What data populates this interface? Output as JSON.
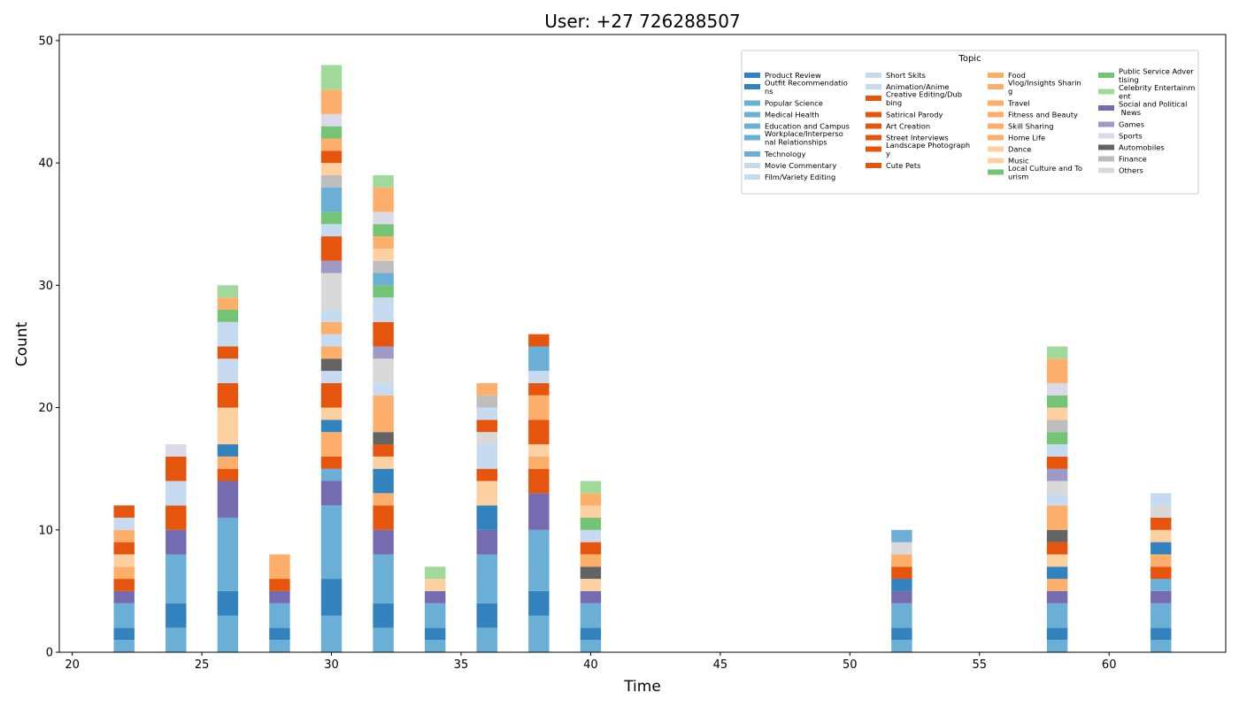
{
  "chart_data": {
    "type": "bar",
    "stacked": true,
    "title": "User: +27 726288507",
    "xlabel": "Time",
    "ylabel": "Count",
    "xlim": [
      19.5,
      64.5
    ],
    "ylim": [
      0,
      50.5
    ],
    "xticks": [
      20,
      25,
      30,
      35,
      40,
      45,
      50,
      55,
      60
    ],
    "yticks": [
      0,
      10,
      20,
      30,
      40,
      50
    ],
    "legend": {
      "title": "Topic",
      "placement": "top-right",
      "columns": 4
    },
    "grid": false,
    "topics": [
      {
        "name": "Product Review",
        "color": "#3182bd"
      },
      {
        "name": "Outfit Recommendations",
        "color": "#3182bd"
      },
      {
        "name": "Popular Science",
        "color": "#6baed6"
      },
      {
        "name": "Medical Health",
        "color": "#6baed6"
      },
      {
        "name": "Education and Campus",
        "color": "#6baed6"
      },
      {
        "name": "Workplace/Interpersonal Relationships",
        "color": "#6baed6"
      },
      {
        "name": "Technology",
        "color": "#6baed6"
      },
      {
        "name": "Movie Commentary",
        "color": "#c6dbef"
      },
      {
        "name": "Film/Variety Editing",
        "color": "#c6dbef"
      },
      {
        "name": "Short Skits",
        "color": "#c6dbef"
      },
      {
        "name": "Animation/Anime",
        "color": "#c6dbef"
      },
      {
        "name": "Creative Editing/Dubbing",
        "color": "#e6550d"
      },
      {
        "name": "Satirical Parody",
        "color": "#e6550d"
      },
      {
        "name": "Art Creation",
        "color": "#e6550d"
      },
      {
        "name": "Street Interviews",
        "color": "#e6550d"
      },
      {
        "name": "Landscape Photography",
        "color": "#e6550d"
      },
      {
        "name": "Cute Pets",
        "color": "#e6550d"
      },
      {
        "name": "Food",
        "color": "#fdae6b"
      },
      {
        "name": "Vlog/Insights Sharing",
        "color": "#fdae6b"
      },
      {
        "name": "Travel",
        "color": "#fdae6b"
      },
      {
        "name": "Fitness and Beauty",
        "color": "#fdae6b"
      },
      {
        "name": "Skill Sharing",
        "color": "#fdae6b"
      },
      {
        "name": "Home Life",
        "color": "#fdae6b"
      },
      {
        "name": "Dance",
        "color": "#fdd0a2"
      },
      {
        "name": "Music",
        "color": "#fdd0a2"
      },
      {
        "name": "Local Culture and Tourism",
        "color": "#74c476"
      },
      {
        "name": "Public Service Advertising",
        "color": "#74c476"
      },
      {
        "name": "Celebrity Entertainment",
        "color": "#a1d99b"
      },
      {
        "name": "Social and Political News",
        "color": "#756bb1"
      },
      {
        "name": "Games",
        "color": "#9e9ac8"
      },
      {
        "name": "Sports",
        "color": "#dadaeb"
      },
      {
        "name": "Automobiles",
        "color": "#636363"
      },
      {
        "name": "Finance",
        "color": "#bdbdbd"
      },
      {
        "name": "Others",
        "color": "#d9d9d9"
      }
    ],
    "legend_labels": [
      [
        "Product Review"
      ],
      [
        "Outfit Recommendatio",
        "ns"
      ],
      [
        "Popular Science"
      ],
      [
        "Medical Health"
      ],
      [
        "Education and Campus"
      ],
      [
        "Workplace/Interperso",
        "nal Relationships"
      ],
      [
        "Technology"
      ],
      [
        "Movie Commentary"
      ],
      [
        "Film/Variety Editing"
      ],
      [
        "Short Skits"
      ],
      [
        "Animation/Anime"
      ],
      [
        "Creative Editing/Dub",
        "bing"
      ],
      [
        "Satirical Parody"
      ],
      [
        "Art Creation"
      ],
      [
        "Street Interviews"
      ],
      [
        "Landscape Photograph",
        "y"
      ],
      [
        "Cute Pets"
      ],
      [
        "Food"
      ],
      [
        "Vlog/Insights Sharin",
        "g"
      ],
      [
        "Travel"
      ],
      [
        "Fitness and Beauty"
      ],
      [
        "Skill Sharing"
      ],
      [
        "Home Life"
      ],
      [
        "Dance"
      ],
      [
        "Music"
      ],
      [
        "Local Culture and To",
        "urism"
      ],
      [
        "Public Service Adver",
        "tising"
      ],
      [
        "Celebrity Entertainm",
        "ent"
      ],
      [
        "Social and Political",
        " News"
      ],
      [
        "Games"
      ],
      [
        "Sports"
      ],
      [
        "Automobiles"
      ],
      [
        "Finance"
      ],
      [
        "Others"
      ]
    ],
    "bars": [
      {
        "x": 22,
        "stack": [
          [
            "#6baed6",
            1
          ],
          [
            "#3182bd",
            1
          ],
          [
            "#6baed6",
            2
          ],
          [
            "#756bb1",
            1
          ],
          [
            "#e6550d",
            1
          ],
          [
            "#fdae6b",
            1
          ],
          [
            "#fdd0a2",
            1
          ],
          [
            "#e6550d",
            1
          ],
          [
            "#fdae6b",
            1
          ],
          [
            "#c6dbef",
            1
          ],
          [
            "#e6550d",
            1
          ]
        ]
      },
      {
        "x": 24,
        "stack": [
          [
            "#6baed6",
            2
          ],
          [
            "#3182bd",
            2
          ],
          [
            "#6baed6",
            4
          ],
          [
            "#756bb1",
            2
          ],
          [
            "#e6550d",
            2
          ],
          [
            "#c6dbef",
            2
          ],
          [
            "#e6550d",
            2
          ],
          [
            "#dadaeb",
            1
          ]
        ]
      },
      {
        "x": 26,
        "stack": [
          [
            "#6baed6",
            3
          ],
          [
            "#3182bd",
            2
          ],
          [
            "#6baed6",
            6
          ],
          [
            "#756bb1",
            3
          ],
          [
            "#e6550d",
            1
          ],
          [
            "#fdae6b",
            1
          ],
          [
            "#3182bd",
            1
          ],
          [
            "#fdd0a2",
            3
          ],
          [
            "#e6550d",
            2
          ],
          [
            "#c6dbef",
            2
          ],
          [
            "#e6550d",
            1
          ],
          [
            "#c6dbef",
            2
          ],
          [
            "#74c476",
            1
          ],
          [
            "#fdae6b",
            1
          ],
          [
            "#a1d99b",
            1
          ]
        ]
      },
      {
        "x": 28,
        "stack": [
          [
            "#6baed6",
            1
          ],
          [
            "#3182bd",
            1
          ],
          [
            "#6baed6",
            2
          ],
          [
            "#756bb1",
            1
          ],
          [
            "#e6550d",
            1
          ],
          [
            "#fdae6b",
            2
          ]
        ]
      },
      {
        "x": 30,
        "stack": [
          [
            "#6baed6",
            3
          ],
          [
            "#3182bd",
            3
          ],
          [
            "#6baed6",
            6
          ],
          [
            "#756bb1",
            2
          ],
          [
            "#6baed6",
            1
          ],
          [
            "#e6550d",
            1
          ],
          [
            "#fdae6b",
            2
          ],
          [
            "#3182bd",
            1
          ],
          [
            "#fdd0a2",
            1
          ],
          [
            "#e6550d",
            2
          ],
          [
            "#c6dbef",
            1
          ],
          [
            "#636363",
            1
          ],
          [
            "#fdae6b",
            1
          ],
          [
            "#c6dbef",
            1
          ],
          [
            "#fdae6b",
            1
          ],
          [
            "#c6dbef",
            1
          ],
          [
            "#d9d9d9",
            3
          ],
          [
            "#9e9ac8",
            1
          ],
          [
            "#e6550d",
            2
          ],
          [
            "#c6dbef",
            1
          ],
          [
            "#74c476",
            1
          ],
          [
            "#6baed6",
            2
          ],
          [
            "#bdbdbd",
            1
          ],
          [
            "#fdd0a2",
            1
          ],
          [
            "#e6550d",
            1
          ],
          [
            "#fdae6b",
            1
          ],
          [
            "#74c476",
            1
          ],
          [
            "#dadaeb",
            1
          ],
          [
            "#fdae6b",
            2
          ],
          [
            "#a1d99b",
            2
          ]
        ]
      },
      {
        "x": 32,
        "stack": [
          [
            "#6baed6",
            2
          ],
          [
            "#3182bd",
            2
          ],
          [
            "#6baed6",
            4
          ],
          [
            "#756bb1",
            2
          ],
          [
            "#e6550d",
            2
          ],
          [
            "#fdae6b",
            1
          ],
          [
            "#3182bd",
            2
          ],
          [
            "#fdd0a2",
            1
          ],
          [
            "#e6550d",
            1
          ],
          [
            "#636363",
            1
          ],
          [
            "#fdae6b",
            3
          ],
          [
            "#c6dbef",
            1
          ],
          [
            "#d9d9d9",
            2
          ],
          [
            "#9e9ac8",
            1
          ],
          [
            "#e6550d",
            2
          ],
          [
            "#c6dbef",
            2
          ],
          [
            "#74c476",
            1
          ],
          [
            "#6baed6",
            1
          ],
          [
            "#bdbdbd",
            1
          ],
          [
            "#fdd0a2",
            1
          ],
          [
            "#fdae6b",
            1
          ],
          [
            "#74c476",
            1
          ],
          [
            "#dadaeb",
            1
          ],
          [
            "#fdae6b",
            2
          ],
          [
            "#a1d99b",
            1
          ]
        ]
      },
      {
        "x": 34,
        "stack": [
          [
            "#6baed6",
            1
          ],
          [
            "#3182bd",
            1
          ],
          [
            "#6baed6",
            2
          ],
          [
            "#756bb1",
            1
          ],
          [
            "#fdd0a2",
            1
          ],
          [
            "#a1d99b",
            1
          ]
        ]
      },
      {
        "x": 36,
        "stack": [
          [
            "#6baed6",
            2
          ],
          [
            "#3182bd",
            2
          ],
          [
            "#6baed6",
            4
          ],
          [
            "#756bb1",
            2
          ],
          [
            "#3182bd",
            2
          ],
          [
            "#fdd0a2",
            2
          ],
          [
            "#e6550d",
            1
          ],
          [
            "#c6dbef",
            2
          ],
          [
            "#d9d9d9",
            1
          ],
          [
            "#e6550d",
            1
          ],
          [
            "#c6dbef",
            1
          ],
          [
            "#bdbdbd",
            1
          ],
          [
            "#fdae6b",
            1
          ]
        ]
      },
      {
        "x": 38,
        "stack": [
          [
            "#6baed6",
            3
          ],
          [
            "#3182bd",
            2
          ],
          [
            "#6baed6",
            5
          ],
          [
            "#756bb1",
            3
          ],
          [
            "#e6550d",
            2
          ],
          [
            "#fdae6b",
            1
          ],
          [
            "#fdd0a2",
            1
          ],
          [
            "#e6550d",
            2
          ],
          [
            "#fdae6b",
            2
          ],
          [
            "#e6550d",
            1
          ],
          [
            "#c6dbef",
            1
          ],
          [
            "#6baed6",
            2
          ],
          [
            "#e6550d",
            1
          ]
        ]
      },
      {
        "x": 40,
        "stack": [
          [
            "#6baed6",
            1
          ],
          [
            "#3182bd",
            1
          ],
          [
            "#6baed6",
            2
          ],
          [
            "#756bb1",
            1
          ],
          [
            "#fdd0a2",
            1
          ],
          [
            "#636363",
            1
          ],
          [
            "#fdae6b",
            1
          ],
          [
            "#e6550d",
            1
          ],
          [
            "#c6dbef",
            1
          ],
          [
            "#74c476",
            1
          ],
          [
            "#fdd0a2",
            1
          ],
          [
            "#fdae6b",
            1
          ],
          [
            "#a1d99b",
            1
          ]
        ]
      },
      {
        "x": 52,
        "stack": [
          [
            "#6baed6",
            1
          ],
          [
            "#3182bd",
            1
          ],
          [
            "#6baed6",
            2
          ],
          [
            "#756bb1",
            1
          ],
          [
            "#3182bd",
            1
          ],
          [
            "#e6550d",
            1
          ],
          [
            "#fdae6b",
            1
          ],
          [
            "#d9d9d9",
            1
          ],
          [
            "#6baed6",
            1
          ]
        ]
      },
      {
        "x": 58,
        "stack": [
          [
            "#6baed6",
            1
          ],
          [
            "#3182bd",
            1
          ],
          [
            "#6baed6",
            2
          ],
          [
            "#756bb1",
            1
          ],
          [
            "#fdae6b",
            1
          ],
          [
            "#3182bd",
            1
          ],
          [
            "#fdd0a2",
            1
          ],
          [
            "#e6550d",
            1
          ],
          [
            "#636363",
            1
          ],
          [
            "#fdae6b",
            2
          ],
          [
            "#c6dbef",
            1
          ],
          [
            "#d9d9d9",
            1
          ],
          [
            "#9e9ac8",
            1
          ],
          [
            "#e6550d",
            1
          ],
          [
            "#c6dbef",
            1
          ],
          [
            "#74c476",
            1
          ],
          [
            "#bdbdbd",
            1
          ],
          [
            "#fdd0a2",
            1
          ],
          [
            "#74c476",
            1
          ],
          [
            "#dadaeb",
            1
          ],
          [
            "#fdae6b",
            2
          ],
          [
            "#a1d99b",
            1
          ]
        ]
      },
      {
        "x": 62,
        "stack": [
          [
            "#6baed6",
            1
          ],
          [
            "#3182bd",
            1
          ],
          [
            "#6baed6",
            2
          ],
          [
            "#756bb1",
            1
          ],
          [
            "#6baed6",
            1
          ],
          [
            "#e6550d",
            1
          ],
          [
            "#fdae6b",
            1
          ],
          [
            "#3182bd",
            1
          ],
          [
            "#fdd0a2",
            1
          ],
          [
            "#e6550d",
            1
          ],
          [
            "#d9d9d9",
            1
          ],
          [
            "#c6dbef",
            1
          ]
        ]
      }
    ]
  }
}
